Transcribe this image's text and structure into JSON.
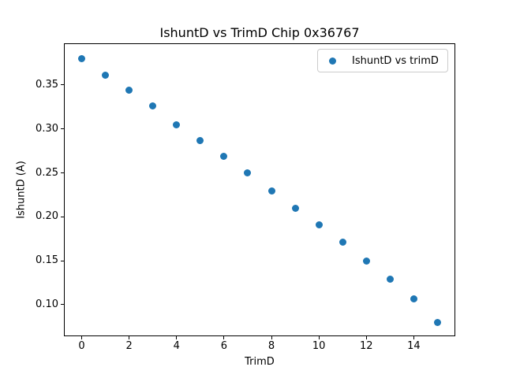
{
  "figure": {
    "background": "#ffffff",
    "text_color": "#000000"
  },
  "chart_data": {
    "type": "scatter",
    "title": "IshuntD vs TrimD Chip 0x36767",
    "xlabel": "TrimD",
    "ylabel": "IshuntD (A)",
    "legend": [
      {
        "label": "IshuntD vs trimD",
        "marker_color": "#1f77b4"
      }
    ],
    "legend_position": "upper right",
    "x": [
      0,
      1,
      2,
      3,
      4,
      5,
      6,
      7,
      8,
      9,
      10,
      11,
      12,
      13,
      14,
      15
    ],
    "y": [
      0.38,
      0.361,
      0.344,
      0.326,
      0.305,
      0.287,
      0.269,
      0.25,
      0.229,
      0.21,
      0.191,
      0.171,
      0.15,
      0.129,
      0.107,
      0.08
    ],
    "xlim": [
      -0.75,
      15.75
    ],
    "ylim": [
      0.064,
      0.3975
    ],
    "xticks": [
      0,
      2,
      4,
      6,
      8,
      10,
      12,
      14
    ],
    "yticks": [
      0.1,
      0.15,
      0.2,
      0.25,
      0.3,
      0.35
    ],
    "ytick_decimals": 2,
    "marker_color": "#1f77b4",
    "frame_color": "#000000",
    "grid": false
  }
}
